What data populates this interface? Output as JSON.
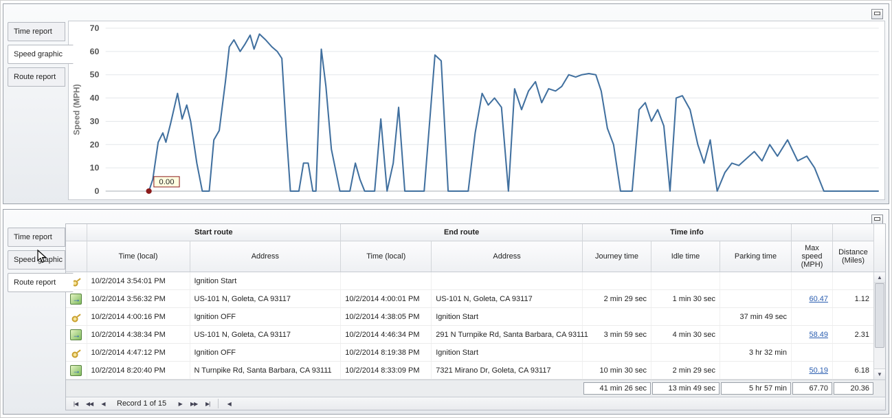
{
  "colors": {
    "line": "#41709f",
    "link": "#2a5db0",
    "annotation": "#8b1a1a",
    "tooltip_bg": "#ffffe1"
  },
  "icons": {
    "collapse": "window-collapse",
    "key": "key",
    "route": "route-arrow",
    "vscroll_up": "▲",
    "vscroll_down": "▼"
  },
  "top_panel": {
    "tabs": [
      {
        "label": "Time report"
      },
      {
        "label": "Speed graphic"
      },
      {
        "label": "Route report"
      }
    ],
    "active_tab": "Speed graphic"
  },
  "chart_data": {
    "type": "line",
    "title": "",
    "xlabel": "",
    "ylabel": "Speed (MPH)",
    "ylim": [
      0,
      70
    ],
    "yticks": [
      0,
      10,
      20,
      30,
      40,
      50,
      60,
      70
    ],
    "grid": true,
    "legend": "none",
    "annotation": {
      "label": "0.00",
      "x": 5.6,
      "y": 0
    },
    "series": [
      {
        "name": "Speed",
        "color": "#41709f",
        "points": [
          [
            5.6,
            0
          ],
          [
            6.1,
            5
          ],
          [
            6.8,
            21
          ],
          [
            7.4,
            25
          ],
          [
            7.8,
            21
          ],
          [
            8.4,
            29
          ],
          [
            9.3,
            42
          ],
          [
            9.9,
            31
          ],
          [
            10.5,
            37
          ],
          [
            11.0,
            30
          ],
          [
            11.8,
            12
          ],
          [
            12.5,
            0
          ],
          [
            13.4,
            0
          ],
          [
            14.0,
            22
          ],
          [
            14.7,
            26
          ],
          [
            15.5,
            47
          ],
          [
            16.0,
            62
          ],
          [
            16.6,
            65
          ],
          [
            17.4,
            60
          ],
          [
            18.0,
            63
          ],
          [
            18.7,
            67
          ],
          [
            19.2,
            61
          ],
          [
            19.9,
            67.5
          ],
          [
            20.7,
            65
          ],
          [
            21.5,
            62
          ],
          [
            22.2,
            60
          ],
          [
            22.8,
            57
          ],
          [
            23.4,
            24
          ],
          [
            23.9,
            0
          ],
          [
            25.0,
            0
          ],
          [
            25.6,
            12
          ],
          [
            26.2,
            12
          ],
          [
            26.8,
            0
          ],
          [
            27.2,
            0
          ],
          [
            27.9,
            61
          ],
          [
            28.5,
            45
          ],
          [
            29.2,
            18
          ],
          [
            30.3,
            0
          ],
          [
            31.6,
            0
          ],
          [
            32.3,
            12
          ],
          [
            32.9,
            5
          ],
          [
            33.5,
            0
          ],
          [
            34.8,
            0
          ],
          [
            35.6,
            31
          ],
          [
            36.4,
            0
          ],
          [
            37.2,
            12
          ],
          [
            37.9,
            36
          ],
          [
            38.7,
            0
          ],
          [
            41.2,
            0
          ],
          [
            42.6,
            58.5
          ],
          [
            43.4,
            56
          ],
          [
            44.3,
            0
          ],
          [
            46.9,
            0
          ],
          [
            47.8,
            25
          ],
          [
            48.7,
            42
          ],
          [
            49.5,
            37
          ],
          [
            50.3,
            40
          ],
          [
            51.2,
            36
          ],
          [
            52.1,
            0
          ],
          [
            52.9,
            44
          ],
          [
            53.8,
            35
          ],
          [
            54.7,
            43
          ],
          [
            55.6,
            47
          ],
          [
            56.4,
            38
          ],
          [
            57.3,
            44
          ],
          [
            58.2,
            43
          ],
          [
            59.0,
            45
          ],
          [
            59.9,
            50
          ],
          [
            60.8,
            49
          ],
          [
            61.6,
            50
          ],
          [
            62.5,
            50.5
          ],
          [
            63.4,
            50
          ],
          [
            64.1,
            43
          ],
          [
            64.9,
            27
          ],
          [
            65.7,
            20
          ],
          [
            66.6,
            0
          ],
          [
            68.1,
            0
          ],
          [
            69.0,
            35
          ],
          [
            69.8,
            38
          ],
          [
            70.6,
            30
          ],
          [
            71.4,
            35
          ],
          [
            72.2,
            28
          ],
          [
            73.0,
            0
          ],
          [
            73.8,
            40
          ],
          [
            74.6,
            41
          ],
          [
            75.6,
            35
          ],
          [
            76.6,
            20
          ],
          [
            77.4,
            12
          ],
          [
            78.2,
            22
          ],
          [
            79.1,
            0
          ],
          [
            80.1,
            8
          ],
          [
            81.0,
            12
          ],
          [
            81.9,
            11
          ],
          [
            82.9,
            14
          ],
          [
            83.9,
            17
          ],
          [
            84.9,
            13
          ],
          [
            85.9,
            20
          ],
          [
            86.9,
            15
          ],
          [
            88.2,
            22
          ],
          [
            89.5,
            13
          ],
          [
            90.7,
            15
          ],
          [
            91.7,
            10
          ],
          [
            92.9,
            0
          ],
          [
            100,
            0
          ]
        ]
      }
    ]
  },
  "bottom_panel": {
    "tabs": [
      {
        "label": "Time report"
      },
      {
        "label": "Speed graphic"
      },
      {
        "label": "Route report"
      }
    ],
    "active_tab": "Route report",
    "table": {
      "groups": [
        "Start route",
        "End route",
        "Time info"
      ],
      "columns": [
        "Time (local)",
        "Address",
        "Time (local)",
        "Address",
        "Journey time",
        "Idle time",
        "Parking time",
        "Max speed (MPH)",
        "Distance (Miles)"
      ],
      "rows": [
        {
          "icon": "key",
          "start_time": "10/2/2014 3:54:01 PM",
          "start_address": "Ignition Start",
          "end_time": "",
          "end_address": "",
          "journey": "",
          "idle": "",
          "parking": "",
          "max_speed": "",
          "distance": ""
        },
        {
          "icon": "route",
          "start_time": "10/2/2014 3:56:32 PM",
          "start_address": "US-101 N, Goleta, CA 93117",
          "end_time": "10/2/2014 4:00:01 PM",
          "end_address": "US-101 N, Goleta, CA 93117",
          "journey": "2 min 29 sec",
          "idle": "1 min 30 sec",
          "parking": "",
          "max_speed": "60.47",
          "distance": "1.12"
        },
        {
          "icon": "key",
          "start_time": "10/2/2014 4:00:16 PM",
          "start_address": "Ignition OFF",
          "end_time": "10/2/2014 4:38:05 PM",
          "end_address": "Ignition Start",
          "journey": "",
          "idle": "",
          "parking": "37 min 49 sec",
          "max_speed": "",
          "distance": ""
        },
        {
          "icon": "route",
          "start_time": "10/2/2014 4:38:34 PM",
          "start_address": "US-101 N, Goleta, CA 93117",
          "end_time": "10/2/2014 4:46:34 PM",
          "end_address": "291 N Turnpike Rd, Santa Barbara, CA 93111",
          "journey": "3 min 59 sec",
          "idle": "4 min 30 sec",
          "parking": "",
          "max_speed": "58.49",
          "distance": "2.31"
        },
        {
          "icon": "key",
          "start_time": "10/2/2014 4:47:12 PM",
          "start_address": "Ignition OFF",
          "end_time": "10/2/2014 8:19:38 PM",
          "end_address": "Ignition Start",
          "journey": "",
          "idle": "",
          "parking": "3 hr 32 min",
          "max_speed": "",
          "distance": ""
        },
        {
          "icon": "route",
          "start_time": "10/2/2014 8:20:40 PM",
          "start_address": "N Turnpike Rd, Santa Barbara, CA 93111",
          "end_time": "10/2/2014 8:33:09 PM",
          "end_address": "7321 Mirano Dr, Goleta, CA 93117",
          "journey": "10 min 30 sec",
          "idle": "2 min 29 sec",
          "parking": "",
          "max_speed": "50.19",
          "distance": "6.18"
        }
      ],
      "summary": {
        "journey": "41 min 26 sec",
        "idle": "13 min 49 sec",
        "parking": "5 hr 57 min",
        "max_speed": "67.70",
        "distance": "20.36"
      }
    },
    "pager": {
      "first": "|◀",
      "prev_page": "◀◀",
      "prev": "◀",
      "record_label": "Record 1 of 15",
      "next": "▶",
      "next_page": "▶▶",
      "last": "▶|",
      "scroll_left": "◀"
    }
  }
}
